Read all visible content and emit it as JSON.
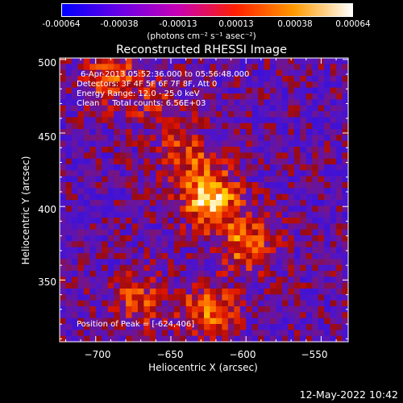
{
  "colorbar": {
    "ticks": [
      "-0.00064",
      "-0.00038",
      "-0.00013",
      "0.00013",
      "0.00038",
      "0.00064"
    ],
    "unit": "(photons cm⁻² s⁻¹ asec⁻²)",
    "colors": [
      "#0000ff",
      "#6a00e6",
      "#c800b4",
      "#ff2000",
      "#ff9a00",
      "#ffffff"
    ]
  },
  "annotations": {
    "time_range": "6-Apr-2013 05:52:36.000 to 05:56:48.000",
    "detectors": "Detectors: 3F 4F 5F 6F 7F 8F, Att 0",
    "energy": "Energy Range: 12.0 - 25.0 keV",
    "clean": "Clean     Total counts: 6.56E+03",
    "peak": "Position of Peak = [-624,406]"
  },
  "footer": {
    "date": "12-May-2022 10:42"
  },
  "chart_data": {
    "type": "heatmap",
    "title": "Reconstructed RHESSI Image",
    "xlabel": "Heliocentric X (arcsec)",
    "ylabel": "Heliocentric Y (arcsec)",
    "xlim": [
      -724,
      -532
    ],
    "ylim": [
      308,
      501
    ],
    "x_ticks": [
      -700,
      -650,
      -600,
      -550
    ],
    "y_ticks": [
      350,
      400,
      450,
      500
    ],
    "x_tick_labels": [
      "−700",
      "−650",
      "−600",
      "−550"
    ],
    "y_tick_labels": [
      "350",
      "400",
      "450",
      "500"
    ],
    "value_range": [
      -0.00064,
      0.00064
    ],
    "peak_position": [
      -624,
      406
    ],
    "sources": [
      {
        "x": -624,
        "y": 406,
        "peak": 0.00064
      },
      {
        "x": -600,
        "y": 375,
        "peak": 0.00042
      },
      {
        "x": -625,
        "y": 328,
        "peak": 0.0004
      },
      {
        "x": -672,
        "y": 335,
        "peak": 0.0003
      },
      {
        "x": -640,
        "y": 435,
        "peak": 0.0003
      },
      {
        "x": -690,
        "y": 488,
        "peak": 0.00035
      },
      {
        "x": -660,
        "y": 470,
        "peak": 0.0002
      }
    ]
  }
}
